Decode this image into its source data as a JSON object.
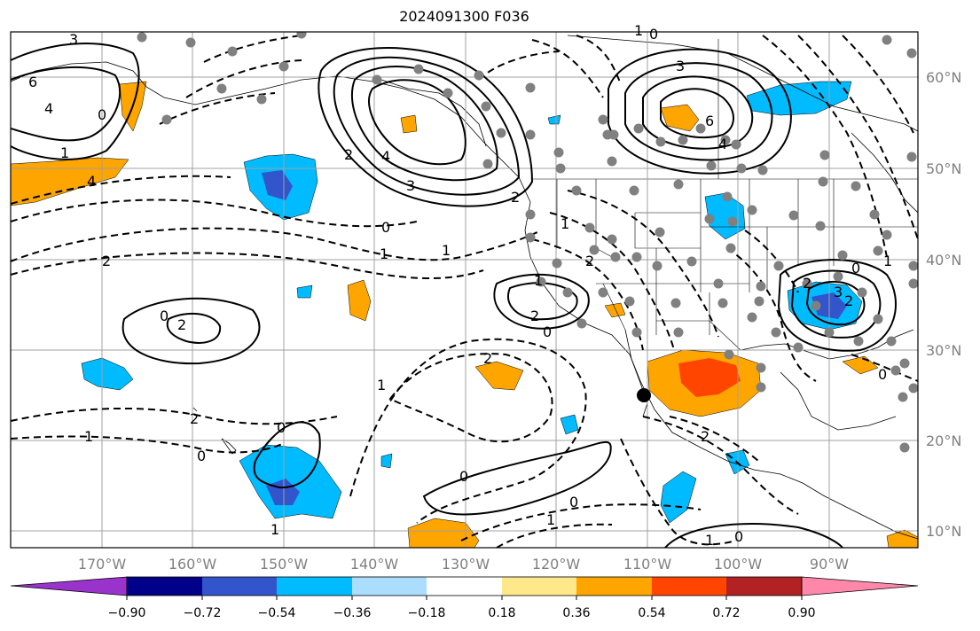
{
  "title": "2024091300 F036",
  "map": {
    "lat_labels": [
      "60°N",
      "50°N",
      "40°N",
      "30°N",
      "20°N",
      "10°N"
    ],
    "lon_labels": [
      "170°W",
      "160°W",
      "150°W",
      "140°W",
      "130°W",
      "120°W",
      "110°W",
      "100°W",
      "90°W"
    ],
    "contour_labels": [
      "3",
      "6",
      "4",
      "1",
      "4",
      "0",
      "2",
      "4",
      "3",
      "0",
      "3",
      "6",
      "4",
      "1",
      "1",
      "2",
      "0",
      "1",
      "1",
      "2",
      "1",
      "0",
      "2",
      "2",
      "0",
      "3",
      "2",
      "0",
      "1",
      "2",
      "0",
      "2",
      "1",
      "0",
      "1",
      "0",
      "1",
      "0",
      "1",
      "2",
      "1",
      "0",
      "2",
      "0",
      "2"
    ]
  },
  "colorbar": {
    "labels": [
      "−0.90",
      "−0.72",
      "−0.54",
      "−0.36",
      "−0.18",
      "0.18",
      "0.36",
      "0.54",
      "0.72",
      "0.90"
    ],
    "colors": [
      "#9933cc",
      "#000088",
      "#3355cc",
      "#00bbff",
      "#aaddff",
      "#ffffff",
      "#ffe88a",
      "#ffa500",
      "#ff4500",
      "#b22222",
      "#ff88aa"
    ]
  }
}
